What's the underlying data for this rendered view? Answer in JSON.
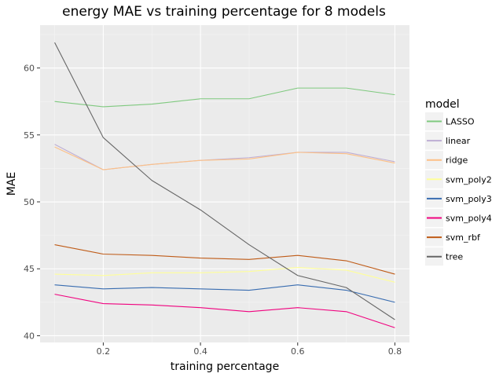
{
  "chart_data": {
    "type": "line",
    "title": "energy MAE vs training percentage for 8 models",
    "xlabel": "training percentage",
    "ylabel": "MAE",
    "x": [
      0.1,
      0.2,
      0.3,
      0.4,
      0.5,
      0.6,
      0.7,
      0.8
    ],
    "xlim": [
      0.07,
      0.83
    ],
    "ylim": [
      39.5,
      63.2
    ],
    "x_ticks": [
      0.2,
      0.4,
      0.6,
      0.8
    ],
    "x_tick_labels": [
      "0.2",
      "0.4",
      "0.6",
      "0.8"
    ],
    "y_ticks": [
      40,
      45,
      50,
      55,
      60
    ],
    "y_tick_labels": [
      "40",
      "45",
      "50",
      "55",
      "60"
    ],
    "grid": true,
    "legend": {
      "title": "model",
      "position": "right"
    },
    "series": [
      {
        "name": "LASSO",
        "color": "#7fc97f",
        "values": [
          57.5,
          57.1,
          57.3,
          57.7,
          57.7,
          58.5,
          58.5,
          58.0
        ]
      },
      {
        "name": "linear",
        "color": "#beaed4",
        "values": [
          54.3,
          52.4,
          52.8,
          53.1,
          53.3,
          53.7,
          53.7,
          53.0
        ]
      },
      {
        "name": "ridge",
        "color": "#fdc086",
        "values": [
          54.1,
          52.4,
          52.8,
          53.1,
          53.2,
          53.7,
          53.6,
          52.9
        ]
      },
      {
        "name": "svm_poly2",
        "color": "#ffff99",
        "values": [
          44.6,
          44.5,
          44.7,
          44.7,
          44.8,
          45.1,
          44.9,
          44.0
        ]
      },
      {
        "name": "svm_poly3",
        "color": "#386cb0",
        "values": [
          43.8,
          43.5,
          43.6,
          43.5,
          43.4,
          43.8,
          43.4,
          42.5
        ]
      },
      {
        "name": "svm_poly4",
        "color": "#f0027f",
        "values": [
          43.1,
          42.4,
          42.3,
          42.1,
          41.8,
          42.1,
          41.8,
          40.6
        ]
      },
      {
        "name": "svm_rbf",
        "color": "#bf5b17",
        "values": [
          46.8,
          46.1,
          46.0,
          45.8,
          45.7,
          46.0,
          45.6,
          44.6
        ]
      },
      {
        "name": "tree",
        "color": "#666666",
        "values": [
          61.9,
          54.8,
          51.6,
          49.4,
          46.8,
          44.5,
          43.6,
          41.2
        ]
      }
    ]
  }
}
